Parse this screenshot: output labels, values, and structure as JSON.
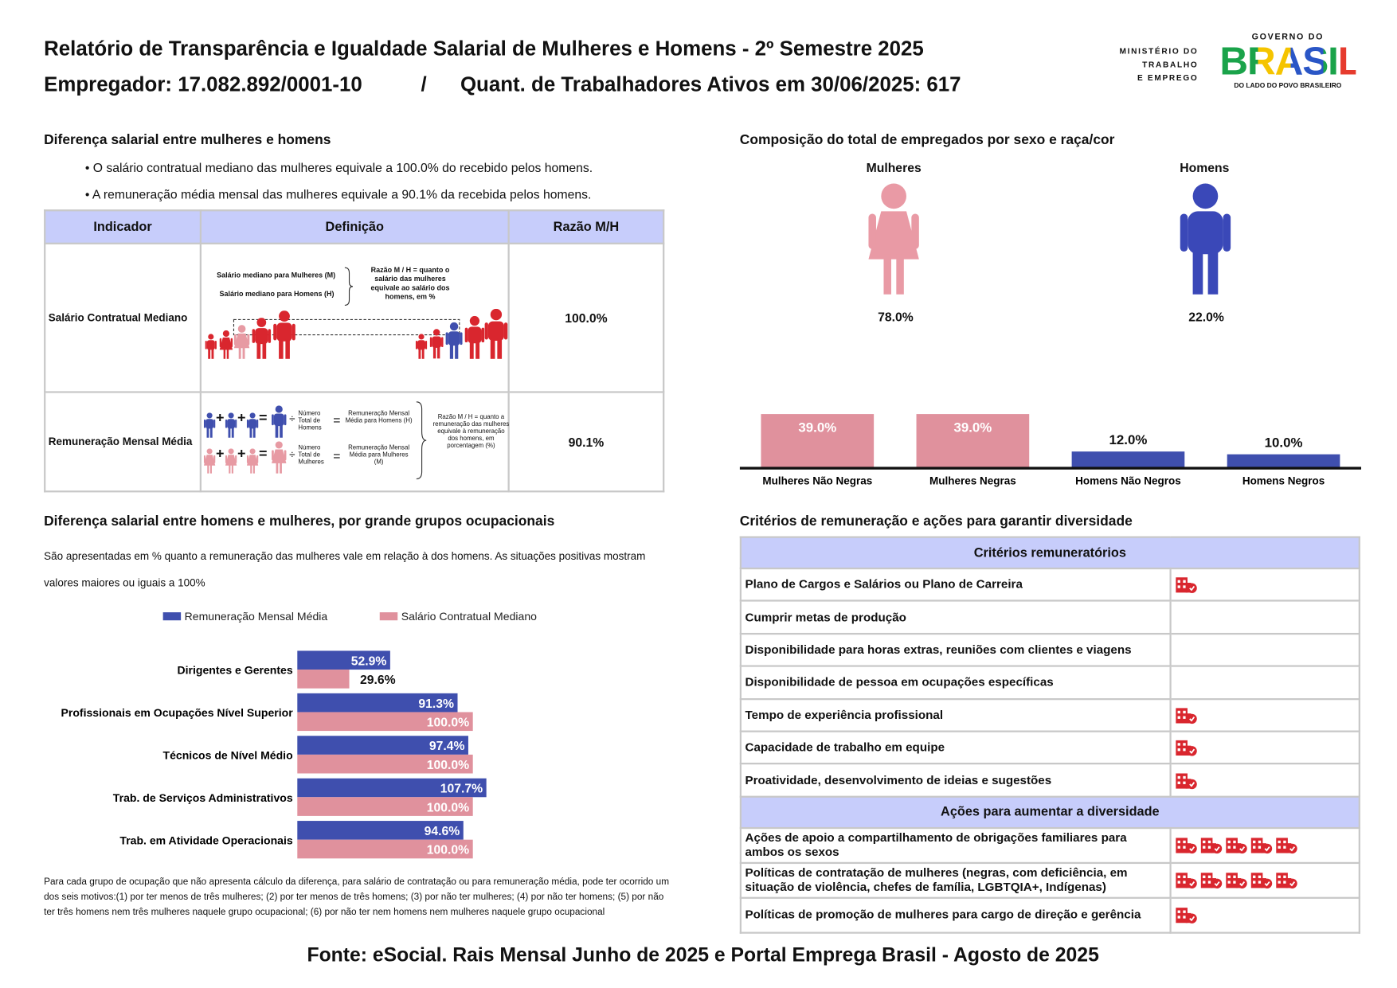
{
  "header": {
    "title": "Relatório de Transparência e Igualdade Salarial de Mulheres e Homens - 2º Semestre 2025",
    "employer": "Empregador: 17.082.892/0001-10",
    "separator": "/",
    "workers": "Quant. de Trabalhadores Ativos em 30/06/2025: 617",
    "ministry": [
      "MINISTÉRIO DO",
      "TRABALHO",
      "E EMPREGO"
    ],
    "gov_top": "GOVERNO DO",
    "gov_brand": "BRASIL",
    "gov_tagline": "DO LADO DO POVO BRASILEIRO"
  },
  "salary_gap": {
    "title": "Diferença salarial entre mulheres e homens",
    "bullets": [
      "• O salário contratual mediano das mulheres equivale a 100.0% do recebido pelos homens.",
      "• A remuneração média mensal das mulheres equivale a 90.1% da recebida pelos homens."
    ],
    "table": {
      "headers": [
        "Indicador",
        "Definição",
        "Razão M/H"
      ],
      "rows": [
        [
          "Salário Contratual Mediano",
          "100.0%"
        ],
        [
          "Remuneração Mensal Média",
          "90.1%"
        ]
      ],
      "diagram_1": {
        "women": "Salário mediano para Mulheres (M)",
        "men": "Salário mediano para Homens (H)",
        "ratio": "Razão M / H = quanto o salário das mulheres equivale ao salário dos homens, em %"
      },
      "diagram_2": {
        "men_count": "Número Total de Homens",
        "men_avg": "Remuneração Mensal Média para Homens (H)",
        "women_count": "Número Total de Mulheres",
        "women_avg": "Remuneração Mensal Média para Mulheres (M)",
        "ratio": "Razão M / H = quanto a remuneração das mulheres equivale à remuneração dos homens, em porcentagem (%)",
        "plus": "+",
        "divide": "÷",
        "equals": "="
      }
    }
  },
  "composition": {
    "groups": [
      {
        "label": "Mulheres",
        "share": "78.0%"
      },
      {
        "label": "Homens",
        "share": "22.0%"
      }
    ]
  },
  "chart_data": [
    {
      "type": "bar",
      "title": "Composição do total de empregados por sexo e raça/cor",
      "categories": [
        "Mulheres Não Negras",
        "Mulheres Negras",
        "Homens Não Negros",
        "Homens Negros"
      ],
      "values": [
        39.0,
        39.0,
        12.0,
        10.0
      ],
      "value_labels": [
        "39.0%",
        "39.0%",
        "12.0%",
        "10.0%"
      ],
      "colors": [
        "#e0919d",
        "#e0919d",
        "#3f4fae",
        "#3f4fae"
      ],
      "ylim": [
        0,
        40
      ]
    },
    {
      "type": "barh",
      "title": "Diferença salarial entre homens e mulheres, por grande grupos ocupacionais",
      "subtitle": "São apresentadas em % quanto a remuneração das mulheres vale em relação à dos homens. As situações positivas mostram valores maiores ou iguais a 100%",
      "categories": [
        "Dirigentes e Gerentes",
        "Profissionais em Ocupações Nível Superior",
        "Técnicos de Nível Médio",
        "Trab. de Serviços Administrativos",
        "Trab. em Atividade Operacionais"
      ],
      "series": [
        {
          "name": "Remuneração Mensal Média",
          "color": "#3f4fae",
          "values": [
            52.9,
            91.3,
            97.4,
            107.7,
            94.6
          ],
          "value_labels": [
            "52.9%",
            "91.3%",
            "97.4%",
            "107.7%",
            "94.6%"
          ]
        },
        {
          "name": "Salário Contratual Mediano",
          "color": "#e0919d",
          "values": [
            29.6,
            100.0,
            100.0,
            100.0,
            100.0
          ],
          "value_labels": [
            "29.6%",
            "100.0%",
            "100.0%",
            "100.0%",
            "100.0%"
          ]
        }
      ],
      "xlim": [
        0,
        200
      ],
      "legend": "top"
    }
  ],
  "footnote": "Para cada grupo de ocupação que não apresenta cálculo da diferença, para salário de contratação ou para remuneração média, pode ter ocorrido um dos seis motivos:(1) por ter menos de três mulheres; (2) por ter menos de três homens; (3) por não ter mulheres; (4) por não ter homens; (5) por não ter três homens nem três mulheres naquele grupo ocupacional; (6) por não ter nem homens nem mulheres naquele grupo ocupacional",
  "criteria": {
    "title": "Critérios de remuneração e ações para garantir diversidade",
    "sections": [
      {
        "heading": "Critérios remuneratórios",
        "rows": [
          {
            "label": "Plano de Cargos e Salários ou Plano de Carreira",
            "icons": 1
          },
          {
            "label": "Cumprir metas de produção",
            "icons": 0
          },
          {
            "label": "Disponibilidade para horas extras, reuniões com clientes e viagens",
            "icons": 0
          },
          {
            "label": "Disponibilidade de pessoa em ocupações específicas",
            "icons": 0
          },
          {
            "label": "Tempo de experiência profissional",
            "icons": 1
          },
          {
            "label": "Capacidade de trabalho em equipe",
            "icons": 1
          },
          {
            "label": "Proatividade, desenvolvimento de ideias e sugestões",
            "icons": 1
          }
        ]
      },
      {
        "heading": "Ações para aumentar a diversidade",
        "rows": [
          {
            "label": "Ações de apoio a compartilhamento de obrigações familiares para ambos os sexos",
            "icons": 5
          },
          {
            "label": "Políticas de contratação de mulheres (negras, com deficiência, em situação de violência, chefes de família, LGBTQIA+, Indígenas)",
            "icons": 5
          },
          {
            "label": "Políticas de promoção de mulheres para cargo de direção e gerência",
            "icons": 1
          }
        ]
      }
    ]
  },
  "source": "Fonte: eSocial. Rais Mensal Junho de 2025 e Portal Emprega Brasil - Agosto de 2025"
}
